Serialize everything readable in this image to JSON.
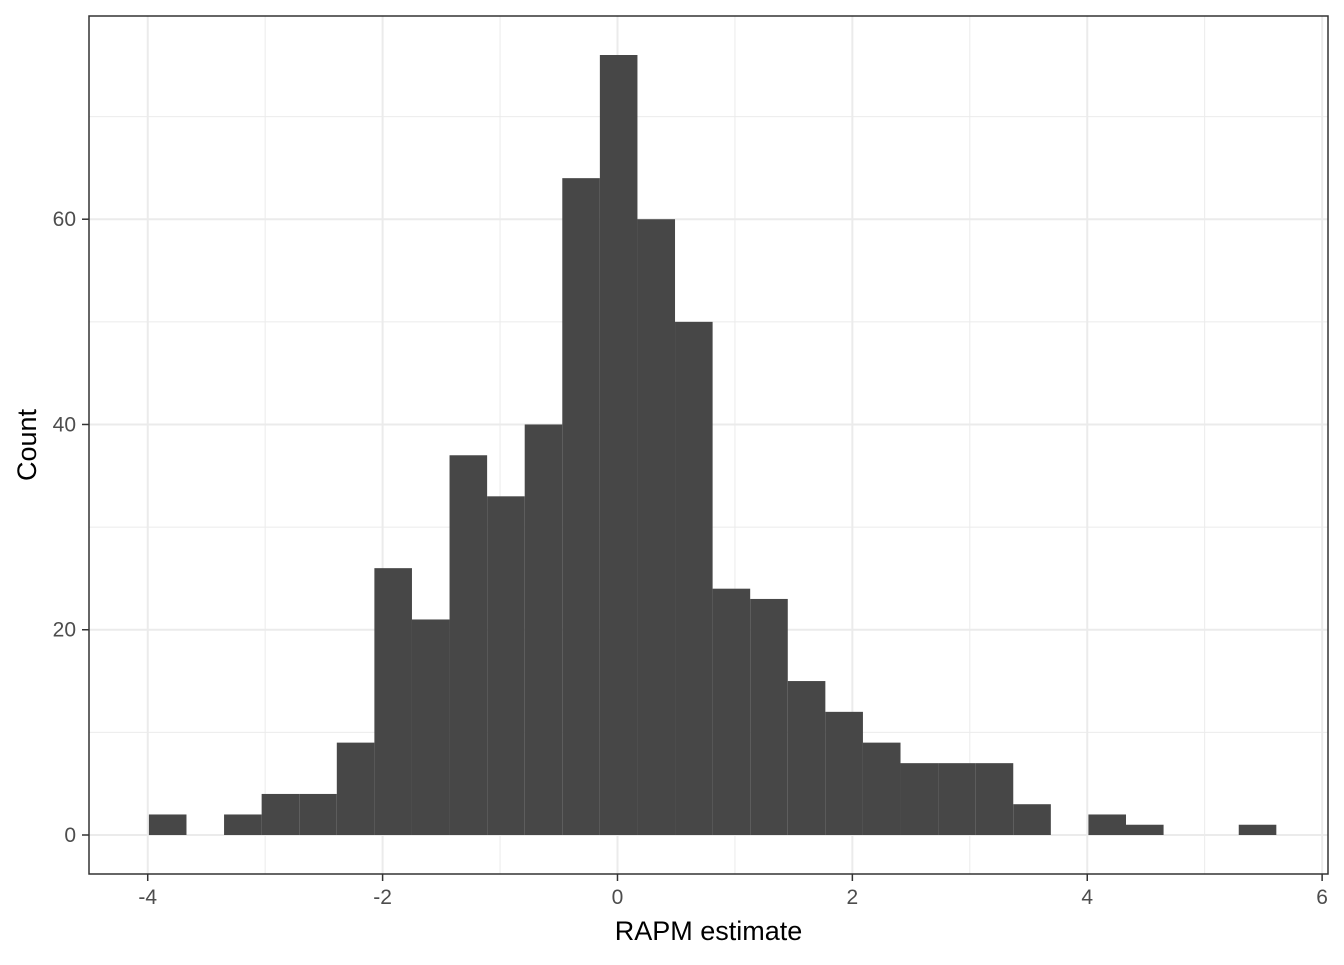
{
  "chart_data": {
    "type": "histogram",
    "xlabel": "RAPM estimate",
    "ylabel": "Count",
    "xlim": [
      -4.5,
      6.05
    ],
    "ylim": [
      -3.8,
      79.8
    ],
    "x_ticks": [
      -4,
      -2,
      0,
      2,
      4,
      6
    ],
    "y_ticks": [
      0,
      20,
      40,
      60
    ],
    "bin_width": 0.32,
    "bins": [
      {
        "x_start": -3.99,
        "count": 2
      },
      {
        "x_start": -3.67,
        "count": 0
      },
      {
        "x_start": -3.35,
        "count": 2
      },
      {
        "x_start": -3.03,
        "count": 4
      },
      {
        "x_start": -2.71,
        "count": 4
      },
      {
        "x_start": -2.39,
        "count": 9
      },
      {
        "x_start": -2.07,
        "count": 26
      },
      {
        "x_start": -1.75,
        "count": 21
      },
      {
        "x_start": -1.43,
        "count": 37
      },
      {
        "x_start": -1.11,
        "count": 33
      },
      {
        "x_start": -0.79,
        "count": 40
      },
      {
        "x_start": -0.47,
        "count": 64
      },
      {
        "x_start": -0.15,
        "count": 76
      },
      {
        "x_start": 0.17,
        "count": 60
      },
      {
        "x_start": 0.49,
        "count": 50
      },
      {
        "x_start": 0.81,
        "count": 24
      },
      {
        "x_start": 1.13,
        "count": 23
      },
      {
        "x_start": 1.45,
        "count": 15
      },
      {
        "x_start": 1.77,
        "count": 12
      },
      {
        "x_start": 2.09,
        "count": 9
      },
      {
        "x_start": 2.41,
        "count": 7
      },
      {
        "x_start": 2.73,
        "count": 7
      },
      {
        "x_start": 3.05,
        "count": 7
      },
      {
        "x_start": 3.37,
        "count": 3
      },
      {
        "x_start": 3.69,
        "count": 0
      },
      {
        "x_start": 4.01,
        "count": 2
      },
      {
        "x_start": 4.33,
        "count": 1
      },
      {
        "x_start": 4.65,
        "count": 0
      },
      {
        "x_start": 4.97,
        "count": 0
      },
      {
        "x_start": 5.29,
        "count": 1
      }
    ],
    "grid": true,
    "bar_color": "#474747",
    "grid_color": "#ebebeb",
    "panel_border_color": "#333333"
  }
}
